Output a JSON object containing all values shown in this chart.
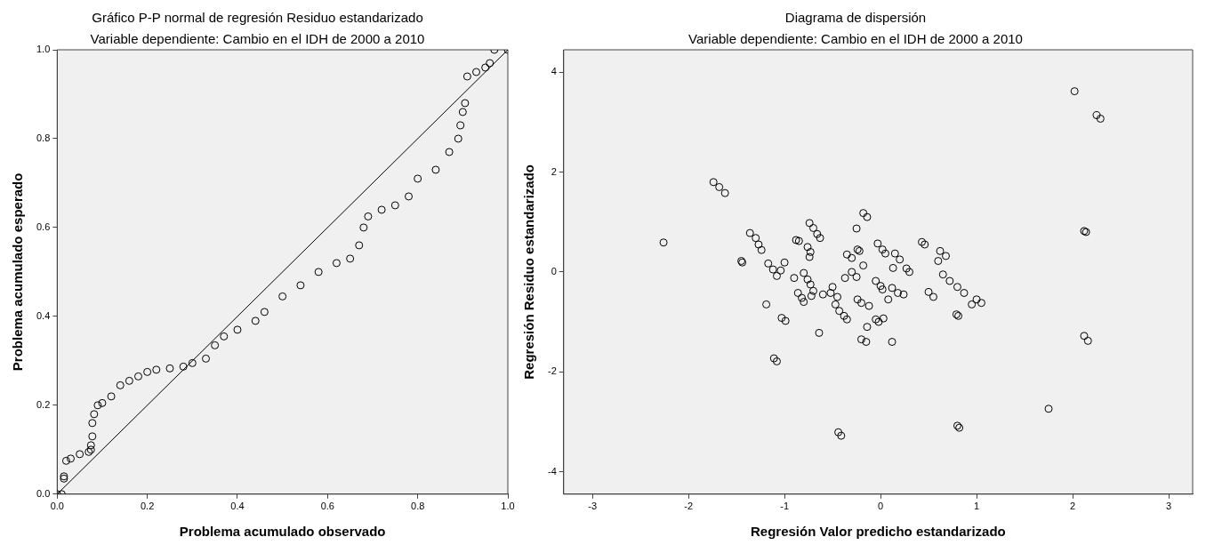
{
  "chart_data": [
    {
      "type": "scatter",
      "title": "Gráfico P-P normal de regresión Residuo estandarizado",
      "subtitle": "Variable dependiente: Cambio en el IDH de 2000 a 2010",
      "xlabel": "Problema acumulado observado",
      "ylabel": "Problema acumulado esperado",
      "marker": "circle",
      "xlim": [
        0,
        1
      ],
      "ylim": [
        0,
        1
      ],
      "xticks": [
        {
          "value": 0,
          "label": "0.0"
        },
        {
          "value": 0.2,
          "label": "0.2"
        },
        {
          "value": 0.4,
          "label": "0.4"
        },
        {
          "value": 0.6,
          "label": "0.6"
        },
        {
          "value": 0.8,
          "label": "0.8"
        },
        {
          "value": 1,
          "label": "1.0"
        }
      ],
      "yticks": [
        {
          "value": 0,
          "label": "0.0"
        },
        {
          "value": 0.2,
          "label": "0.2"
        },
        {
          "value": 0.4,
          "label": "0.4"
        },
        {
          "value": 0.6,
          "label": "0.6"
        },
        {
          "value": 0.8,
          "label": "0.8"
        },
        {
          "value": 1,
          "label": "1.0"
        }
      ],
      "series": [
        {
          "type": "line",
          "color": "#000000",
          "marker": "none",
          "x": [
            0,
            1
          ],
          "values": [
            0,
            1
          ]
        },
        {
          "color": "#000000",
          "x": [
            0,
            0.01,
            0.015,
            0.015,
            0.02,
            0.03,
            0.05,
            0.07,
            0.075,
            0.075,
            0.078,
            0.078,
            0.082,
            0.09,
            0.1,
            0.12,
            0.14,
            0.16,
            0.18,
            0.2,
            0.22,
            0.25,
            0.28,
            0.3,
            0.33,
            0.35,
            0.37,
            0.4,
            0.44,
            0.46,
            0.5,
            0.54,
            0.58,
            0.62,
            0.65,
            0.67,
            0.68,
            0.69,
            0.72,
            0.75,
            0.78,
            0.8,
            0.84,
            0.87,
            0.89,
            0.895,
            0.9,
            0.905,
            0.91,
            0.93,
            0.95,
            0.96,
            0.97,
            1
          ],
          "values": [
            0,
            0,
            0.035,
            0.04,
            0.075,
            0.08,
            0.09,
            0.095,
            0.1,
            0.11,
            0.13,
            0.16,
            0.18,
            0.2,
            0.205,
            0.22,
            0.245,
            0.255,
            0.265,
            0.275,
            0.28,
            0.283,
            0.287,
            0.295,
            0.305,
            0.335,
            0.355,
            0.37,
            0.39,
            0.41,
            0.445,
            0.47,
            0.5,
            0.52,
            0.53,
            0.56,
            0.6,
            0.625,
            0.64,
            0.65,
            0.67,
            0.71,
            0.73,
            0.77,
            0.8,
            0.83,
            0.86,
            0.88,
            0.94,
            0.95,
            0.96,
            0.97,
            1,
            1
          ]
        }
      ]
    },
    {
      "type": "scatter",
      "title": "Diagrama de dispersión",
      "subtitle": "Variable dependiente: Cambio en el IDH de 2000 a 2010",
      "xlabel": "Regresión Valor predicho estandarizado",
      "ylabel": "Regresión Residuo estandarizado",
      "marker": "circle",
      "xlim": [
        -3.3,
        3.25
      ],
      "ylim": [
        -4.45,
        4.45
      ],
      "xticks": [
        -3,
        -2,
        -1,
        0,
        1,
        2,
        3
      ],
      "yticks": [
        -4,
        -2,
        0,
        2,
        4
      ],
      "series": [
        {
          "color": "#000000",
          "x": [
            2.02,
            2.25,
            2.29,
            2.12,
            2.14,
            2.12,
            2.16,
            1.75,
            0.8,
            0.82,
            -0.44,
            -0.41,
            -2.26,
            -1.74,
            -1.68,
            -1.62,
            -1.45,
            -1.44,
            -1.36,
            -1.3,
            -1.27,
            -1.24,
            -1.19,
            -1.17,
            -1.12,
            -1.08,
            -1.04,
            -1,
            -1.03,
            -0.99,
            -1.11,
            -1.08,
            -0.9,
            -0.88,
            -0.85,
            -0.86,
            -0.82,
            -0.8,
            -0.74,
            -0.7,
            -0.66,
            -0.63,
            -0.76,
            -0.73,
            -0.74,
            -0.8,
            -0.76,
            -0.73,
            -0.7,
            -0.72,
            -0.64,
            -0.6,
            -0.52,
            -0.45,
            -0.5,
            -0.47,
            -0.43,
            -0.38,
            -0.35,
            -0.35,
            -0.3,
            -0.37,
            -0.3,
            -0.25,
            -0.25,
            -0.24,
            -0.22,
            -0.24,
            -0.2,
            -0.18,
            -0.14,
            -0.18,
            -0.2,
            -0.15,
            -0.14,
            -0.12,
            -0.05,
            0,
            0.02,
            -0.05,
            -0.02,
            0.03,
            -0.03,
            0.02,
            0.05,
            0.08,
            0.12,
            0.13,
            0.15,
            0.2,
            0.12,
            0.18,
            0.24,
            0.27,
            0.3,
            0.43,
            0.46,
            0.5,
            0.55,
            0.62,
            0.68,
            0.6,
            0.65,
            0.72,
            0.8,
            0.87,
            0.79,
            0.81,
            0.95,
            1,
            1.05
          ],
          "values": [
            3.62,
            3.14,
            3.07,
            0.82,
            0.8,
            -1.28,
            -1.38,
            -2.74,
            -3.08,
            -3.12,
            -3.21,
            -3.28,
            0.59,
            1.8,
            1.7,
            1.58,
            0.22,
            0.19,
            0.78,
            0.68,
            0.55,
            0.44,
            -0.65,
            0.17,
            0.05,
            -0.08,
            0.03,
            0.19,
            -0.92,
            -0.98,
            -1.73,
            -1.79,
            -0.12,
            0.64,
            0.62,
            -0.42,
            -0.52,
            -0.6,
            0.98,
            0.88,
            0.76,
            0.68,
            0.5,
            0.4,
            0.3,
            -0.02,
            -0.15,
            -0.25,
            -0.38,
            -0.48,
            -1.22,
            -0.45,
            -0.42,
            -0.5,
            -0.3,
            -0.65,
            -0.78,
            -0.88,
            -0.95,
            0.35,
            0.28,
            -0.12,
            0,
            -0.1,
            0.87,
            0.45,
            0.42,
            -0.55,
            -0.62,
            1.18,
            1.1,
            0.13,
            -1.35,
            -1.4,
            -1.1,
            -0.68,
            -0.18,
            -0.28,
            -0.35,
            -0.95,
            -1,
            -0.93,
            0.57,
            0.45,
            0.37,
            -0.55,
            -1.4,
            0.08,
            0.37,
            0.25,
            -0.32,
            -0.42,
            -0.45,
            0.07,
            0,
            0.6,
            0.55,
            -0.4,
            -0.5,
            0.42,
            0.32,
            0.22,
            -0.05,
            -0.18,
            -0.3,
            -0.42,
            -0.85,
            -0.88,
            -0.65,
            -0.55,
            -0.62
          ]
        }
      ]
    }
  ]
}
